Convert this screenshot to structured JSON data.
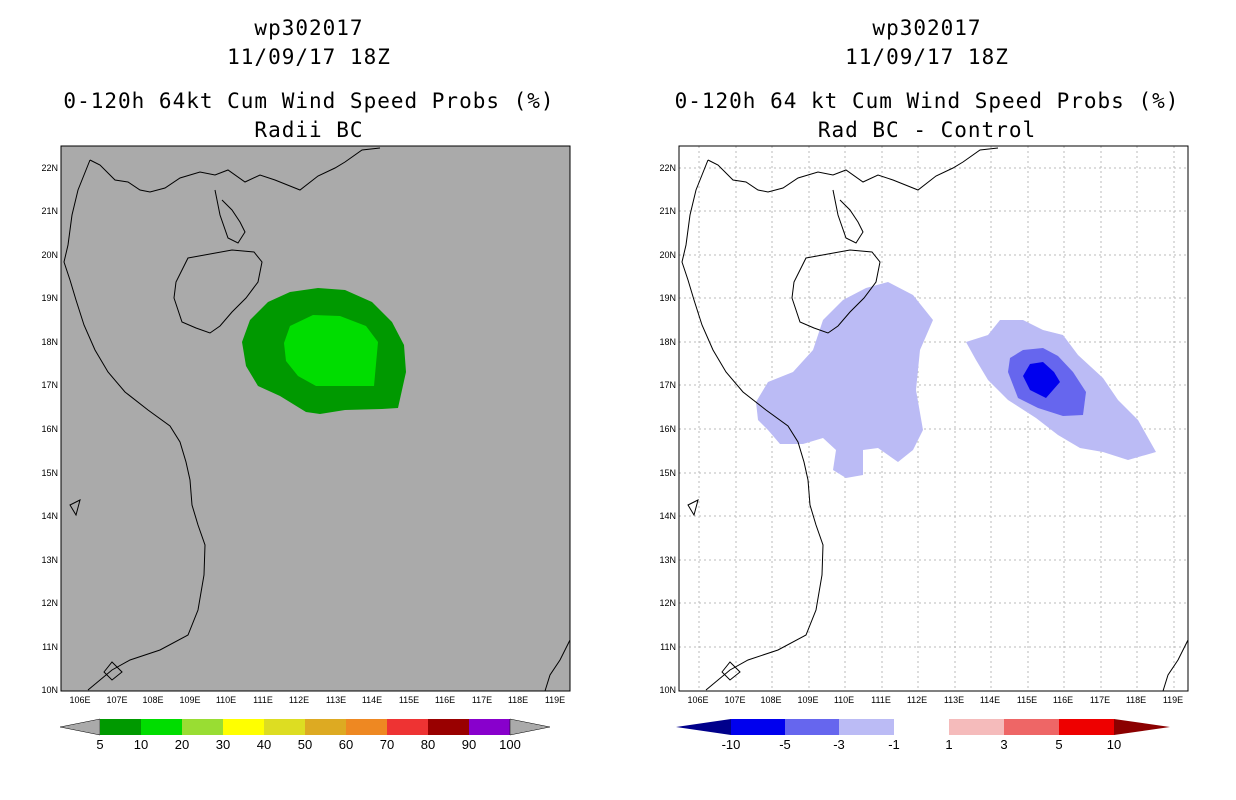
{
  "left_panel": {
    "storm_id": "wp302017",
    "datetime": "11/09/17 18Z",
    "title": "0-120h 64kt Cum Wind Speed Probs (%)",
    "subtitle": "Radii BC",
    "colorbar": {
      "labels": [
        "5",
        "10",
        "20",
        "30",
        "40",
        "50",
        "60",
        "70",
        "80",
        "90",
        "100"
      ],
      "colors": [
        "#009900",
        "#00dd00",
        "#99dd33",
        "#ffff00",
        "#dddd22",
        "#ddaa22",
        "#ee8822",
        "#ee3333",
        "#990000",
        "#8800cc"
      ]
    }
  },
  "right_panel": {
    "storm_id": "wp302017",
    "datetime": "11/09/17 18Z",
    "title": "0-120h 64 kt Cum Wind Speed Probs (%)",
    "subtitle": "Rad BC - Control",
    "colorbar": {
      "labels": [
        "-10",
        "-5",
        "-3",
        "-1",
        "1",
        "3",
        "5",
        "10"
      ],
      "colors": [
        "#00008b",
        "#0000ee",
        "#6666ee",
        "#bbbbf5",
        "#ffffff",
        "#f5bbbb",
        "#ee6666",
        "#ee0000",
        "#8b0000"
      ]
    }
  },
  "map": {
    "lat_labels": [
      "22N",
      "21N",
      "20N",
      "19N",
      "18N",
      "17N",
      "16N",
      "15N",
      "14N",
      "13N",
      "12N",
      "11N",
      "10N"
    ],
    "lon_labels": [
      "106E",
      "107E",
      "108E",
      "109E",
      "110E",
      "111E",
      "112E",
      "113E",
      "114E",
      "115E",
      "116E",
      "117E",
      "118E",
      "119E"
    ]
  },
  "colors": {
    "left_background": "#aaaaaa",
    "left_outer_green": "#009900",
    "left_inner_green": "#00dd00",
    "right_light_blue": "#bbbbf5",
    "right_mid_blue": "#6666ee",
    "right_dark_blue": "#0000ee"
  }
}
